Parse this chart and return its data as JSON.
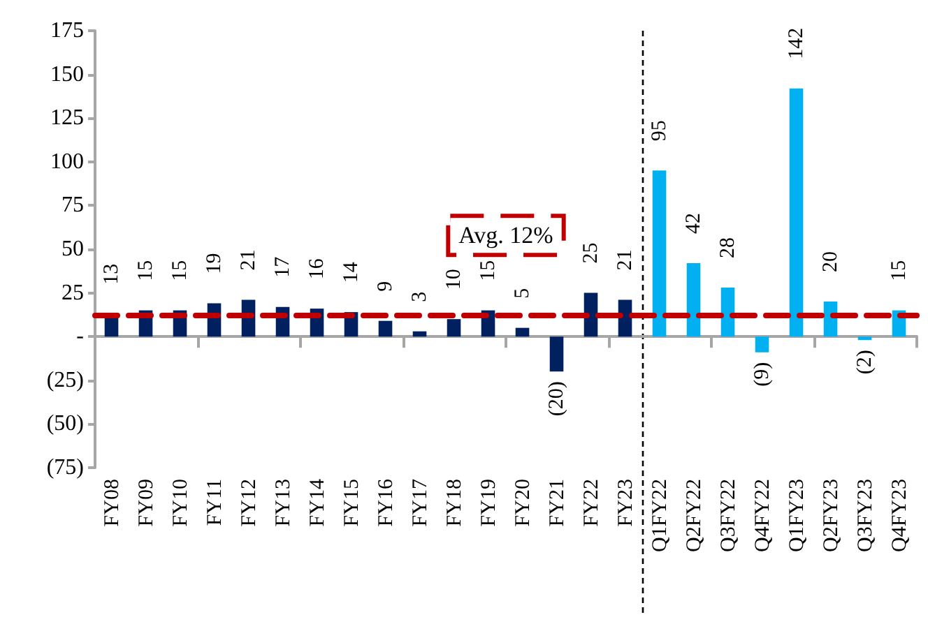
{
  "chart_data": {
    "type": "bar",
    "categories": [
      "FY08",
      "FY09",
      "FY10",
      "FY11",
      "FY12",
      "FY13",
      "FY14",
      "FY15",
      "FY16",
      "FY17",
      "FY18",
      "FY19",
      "FY20",
      "FY21",
      "FY22",
      "FY23",
      "Q1FY22",
      "Q2FY22",
      "Q3FY22",
      "Q4FY22",
      "Q1FY23",
      "Q2FY23",
      "Q3FY23",
      "Q4FY23"
    ],
    "values": [
      13,
      15,
      15,
      19,
      21,
      17,
      16,
      14,
      9,
      3,
      10,
      15,
      5,
      -20,
      25,
      21,
      95,
      42,
      28,
      -9,
      142,
      20,
      -2,
      15
    ],
    "colors": [
      "#002060",
      "#002060",
      "#002060",
      "#002060",
      "#002060",
      "#002060",
      "#002060",
      "#002060",
      "#002060",
      "#002060",
      "#002060",
      "#002060",
      "#002060",
      "#002060",
      "#002060",
      "#002060",
      "#00b0f0",
      "#00b0f0",
      "#00b0f0",
      "#00b0f0",
      "#00b0f0",
      "#00b0f0",
      "#00b0f0",
      "#00b0f0"
    ],
    "value_labels": [
      "13",
      "15",
      "15",
      "19",
      "21",
      "17",
      "16",
      "14",
      "9",
      "3",
      "10",
      "15",
      "5",
      "(20)",
      "25",
      "21",
      "95",
      "42",
      "28",
      "(9)",
      "142",
      "20",
      "(2)",
      "15"
    ],
    "ylim": [
      -75,
      175
    ],
    "yticks": [
      {
        "value": -75,
        "label": "(75)"
      },
      {
        "value": -50,
        "label": "(50)"
      },
      {
        "value": -25,
        "label": "(25)"
      },
      {
        "value": 0,
        "label": "-"
      },
      25,
      50,
      75,
      100,
      125,
      150,
      175
    ],
    "ref_lines": [
      {
        "axis": "y",
        "value": 12,
        "label": "Avg. 12%",
        "color": "#c00000",
        "line_style": "dashed"
      },
      {
        "axis": "x",
        "value": "Q1FY22",
        "label": null,
        "color": "#000000",
        "line_style": "dashed"
      }
    ],
    "grid": false
  }
}
